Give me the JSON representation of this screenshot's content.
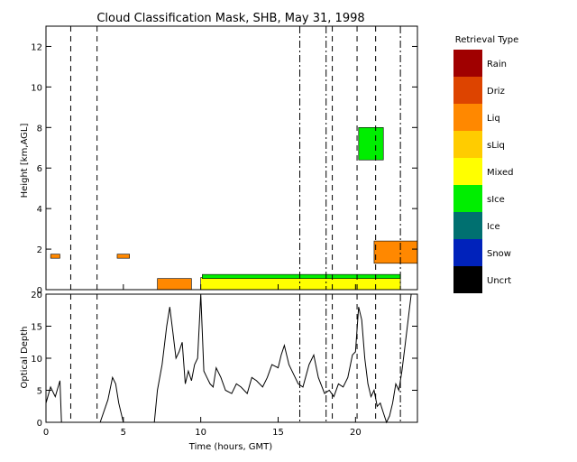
{
  "chart_data": [
    {
      "type": "heatmap",
      "title": "Cloud Classification Mask, SHB, May 31, 1998",
      "xlabel": "",
      "ylabel": "Height [km,AGL]",
      "xlim": [
        0,
        24
      ],
      "ylim": [
        0,
        13
      ],
      "x_ticks": [
        "0",
        "5",
        "10",
        "15",
        "20"
      ],
      "y_ticks": [
        "0",
        "2",
        "4",
        "6",
        "8",
        "10",
        "12"
      ],
      "legend_title": "Retrieval Type",
      "legend_placement": "right",
      "categories": [
        {
          "name": "Rain",
          "color": "#a00000"
        },
        {
          "name": "Driz",
          "color": "#dd4400"
        },
        {
          "name": "Liq",
          "color": "#ff8800"
        },
        {
          "name": "sLiq",
          "color": "#ffcc00"
        },
        {
          "name": "Mixed",
          "color": "#ffff00"
        },
        {
          "name": "sIce",
          "color": "#00ee00"
        },
        {
          "name": "Ice",
          "color": "#007070"
        },
        {
          "name": "Snow",
          "color": "#0022bb"
        },
        {
          "name": "Uncrt",
          "color": "#000000"
        }
      ],
      "regions": [
        {
          "category": "Liq",
          "x": [
            7.2,
            9.4
          ],
          "y": [
            0.0,
            0.55
          ]
        },
        {
          "category": "Mixed",
          "x": [
            10.0,
            22.9
          ],
          "y": [
            0.0,
            0.6
          ]
        },
        {
          "category": "sIce",
          "x": [
            10.1,
            22.9
          ],
          "y": [
            0.55,
            0.75
          ]
        },
        {
          "category": "sIce",
          "x": [
            20.2,
            21.8
          ],
          "y": [
            6.4,
            8.0
          ]
        },
        {
          "category": "Liq",
          "x": [
            21.2,
            24.0
          ],
          "y": [
            1.3,
            2.4
          ]
        },
        {
          "category": "Liq",
          "x": [
            0.3,
            0.9
          ],
          "y": [
            1.55,
            1.75
          ]
        },
        {
          "category": "Liq",
          "x": [
            4.6,
            5.4
          ],
          "y": [
            1.55,
            1.75
          ]
        }
      ],
      "dashed_lines_x": [
        1.6,
        3.3,
        18.5,
        20.1,
        21.3
      ],
      "dashdot_lines_x": [
        16.4,
        18.1,
        22.9
      ]
    },
    {
      "type": "line",
      "ylabel": "Optical Depth",
      "xlabel": "Time (hours, GMT)",
      "xlim": [
        0,
        24
      ],
      "ylim": [
        0,
        20
      ],
      "x_ticks": [
        "0",
        "5",
        "10",
        "15",
        "20"
      ],
      "y_ticks": [
        "0",
        "5",
        "10",
        "15",
        "20"
      ],
      "x": [
        0.0,
        0.3,
        0.6,
        0.9,
        1.0,
        1.2,
        1.5,
        1.8,
        2.0,
        2.8,
        3.0,
        3.5,
        4.0,
        4.3,
        4.5,
        4.7,
        5.0,
        5.2,
        5.4,
        5.6,
        6.0,
        7.0,
        7.2,
        7.5,
        7.8,
        8.0,
        8.2,
        8.4,
        8.6,
        8.8,
        9.0,
        9.2,
        9.4,
        9.6,
        9.8,
        10.0,
        10.2,
        10.4,
        10.6,
        10.8,
        11.0,
        11.3,
        11.6,
        12.0,
        12.3,
        12.6,
        13.0,
        13.3,
        13.6,
        14.0,
        14.3,
        14.6,
        15.0,
        15.2,
        15.4,
        15.7,
        16.0,
        16.3,
        16.6,
        17.0,
        17.3,
        17.6,
        18.0,
        18.3,
        18.6,
        18.9,
        19.2,
        19.5,
        19.8,
        20.0,
        20.2,
        20.4,
        20.6,
        20.8,
        21.0,
        21.2,
        21.4,
        21.6,
        21.8,
        22.0,
        22.2,
        22.4,
        22.6,
        22.8,
        23.0,
        23.2,
        23.4,
        23.6
      ],
      "values": [
        3.0,
        5.5,
        4.0,
        6.5,
        0.0,
        0.0,
        0.0,
        0.0,
        0.0,
        0.0,
        0.0,
        0.0,
        3.5,
        7.0,
        6.0,
        3.0,
        0.0,
        0.0,
        0.0,
        0.0,
        0.0,
        0.0,
        5.0,
        9.0,
        15.0,
        18.0,
        14.0,
        10.0,
        11.0,
        12.5,
        6.0,
        8.0,
        6.5,
        9.0,
        10.0,
        20.0,
        8.0,
        7.0,
        6.0,
        5.5,
        8.5,
        7.0,
        5.0,
        4.5,
        6.0,
        5.5,
        4.5,
        7.0,
        6.5,
        5.5,
        7.0,
        9.0,
        8.5,
        10.5,
        12.0,
        9.0,
        7.5,
        6.0,
        5.5,
        9.0,
        10.5,
        7.0,
        4.5,
        5.0,
        4.0,
        6.0,
        5.5,
        7.0,
        10.5,
        11.0,
        18.0,
        16.0,
        10.0,
        6.0,
        4.0,
        5.0,
        2.5,
        3.0,
        1.5,
        0.0,
        1.0,
        3.0,
        6.0,
        5.0,
        8.0,
        12.0,
        16.0,
        20.0
      ]
    }
  ]
}
